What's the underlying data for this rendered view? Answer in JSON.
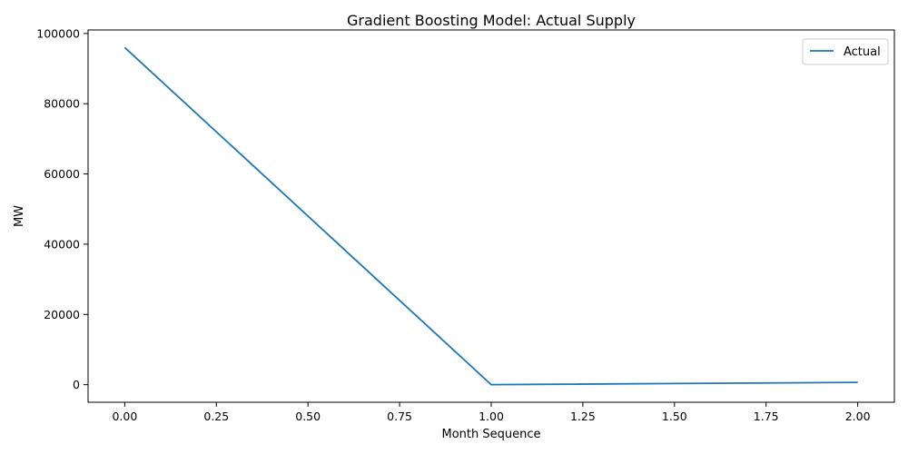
{
  "chart_data": {
    "type": "line",
    "title": "Gradient Boosting Model: Actual Supply",
    "xlabel": "Month Sequence",
    "ylabel": "MW",
    "xlim": [
      -0.1,
      2.1
    ],
    "ylim": [
      -5000,
      101000
    ],
    "xticks": [
      0.0,
      0.25,
      0.5,
      0.75,
      1.0,
      1.25,
      1.5,
      1.75,
      2.0
    ],
    "xtick_labels": [
      "0.00",
      "0.25",
      "0.50",
      "0.75",
      "1.00",
      "1.25",
      "1.50",
      "1.75",
      "2.00"
    ],
    "yticks": [
      0,
      20000,
      40000,
      60000,
      80000,
      100000
    ],
    "ytick_labels": [
      "0",
      "20000",
      "40000",
      "60000",
      "80000",
      "100000"
    ],
    "grid": false,
    "legend_position": "top-right",
    "series": [
      {
        "name": "Actual",
        "color": "#1f77b4",
        "x": [
          0,
          1,
          2
        ],
        "y": [
          96000,
          0,
          650
        ]
      }
    ]
  }
}
